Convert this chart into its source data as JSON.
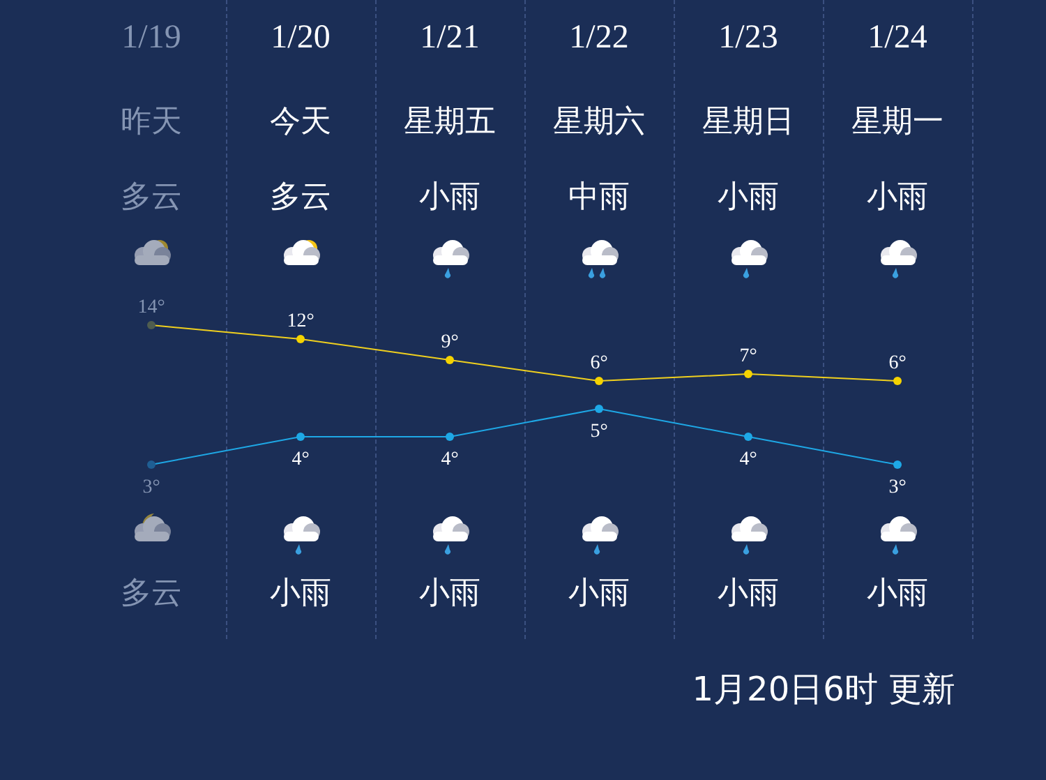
{
  "chart_data": [
    {
      "type": "line",
      "categories": [
        "1/19",
        "1/20",
        "1/21",
        "1/22",
        "1/23",
        "1/24"
      ],
      "series": [
        {
          "color": "#f0d01e",
          "colors": [
            "#4f5d4f",
            "#f5d300",
            "#f5d300",
            "#f5d300",
            "#f5d300",
            "#f5d300"
          ],
          "values": [
            14,
            12,
            9,
            6,
            7,
            6
          ],
          "value_labels": [
            "14°",
            "12°",
            "9°",
            "6°",
            "7°",
            "6°"
          ]
        }
      ],
      "marker": "circle",
      "grid": false,
      "legend": false,
      "annotations": [
        "昨天",
        "今天",
        "星期五",
        "星期六",
        "星期日",
        "星期一",
        "多云",
        "多云",
        "小雨",
        "中雨",
        "小雨",
        "小雨",
        "多云",
        "小雨",
        "小雨",
        "小雨",
        "小雨",
        "小雨",
        "1月20日6时 更新"
      ]
    },
    {
      "type": "line",
      "categories": [
        null,
        null,
        null,
        null,
        null,
        null
      ],
      "series": [
        {
          "color": "#1ea8e6",
          "colors": [
            "#1f5e93",
            "#1ea8e6",
            "#1ea8e6",
            "#1ea8e6",
            "#1ea8e6",
            "#1ea8e6"
          ],
          "values": [
            3,
            4,
            4,
            5,
            4,
            3
          ],
          "value_labels": [
            "3°",
            "4°",
            "4°",
            "5°",
            "4°",
            "3°"
          ]
        }
      ],
      "marker": "circle",
      "grid": false,
      "legend": false
    }
  ]
}
